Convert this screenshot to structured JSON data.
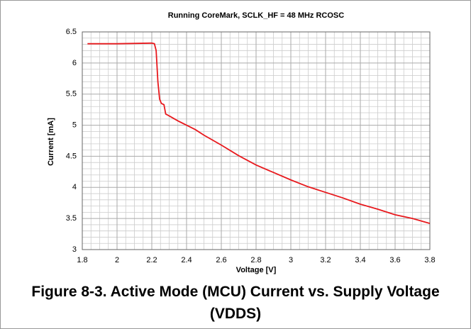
{
  "chart_data": {
    "type": "line",
    "title": "Running CoreMark, SCLK_HF = 48 MHz RCOSC",
    "caption": "Figure 8-3. Active Mode (MCU) Current vs. Supply Voltage (VDDS)",
    "xlabel": "Voltage [V]",
    "ylabel": "Current [mA]",
    "x": [
      1.83,
      2.0,
      2.2,
      2.215,
      2.225,
      2.235,
      2.245,
      2.255,
      2.27,
      2.28,
      2.3,
      2.35,
      2.4,
      2.45,
      2.5,
      2.6,
      2.7,
      2.8,
      2.9,
      3.0,
      3.1,
      3.2,
      3.3,
      3.4,
      3.5,
      3.6,
      3.7,
      3.8
    ],
    "series": [
      {
        "name": "Current",
        "color": "#e8191d",
        "values": [
          6.31,
          6.31,
          6.32,
          6.31,
          6.2,
          5.7,
          5.42,
          5.35,
          5.33,
          5.18,
          5.15,
          5.07,
          5.0,
          4.93,
          4.84,
          4.68,
          4.51,
          4.36,
          4.24,
          4.12,
          4.01,
          3.92,
          3.83,
          3.73,
          3.65,
          3.56,
          3.5,
          3.42
        ]
      }
    ],
    "xlim": [
      1.8,
      3.8
    ],
    "xticks": [
      1.8,
      2,
      2.2,
      2.4,
      2.6,
      2.8,
      3,
      3.2,
      3.4,
      3.6,
      3.8
    ],
    "ylim": [
      3,
      6.5
    ],
    "yticks": [
      3,
      3.5,
      4,
      4.5,
      5,
      5.5,
      6,
      6.5
    ],
    "grid": true
  }
}
